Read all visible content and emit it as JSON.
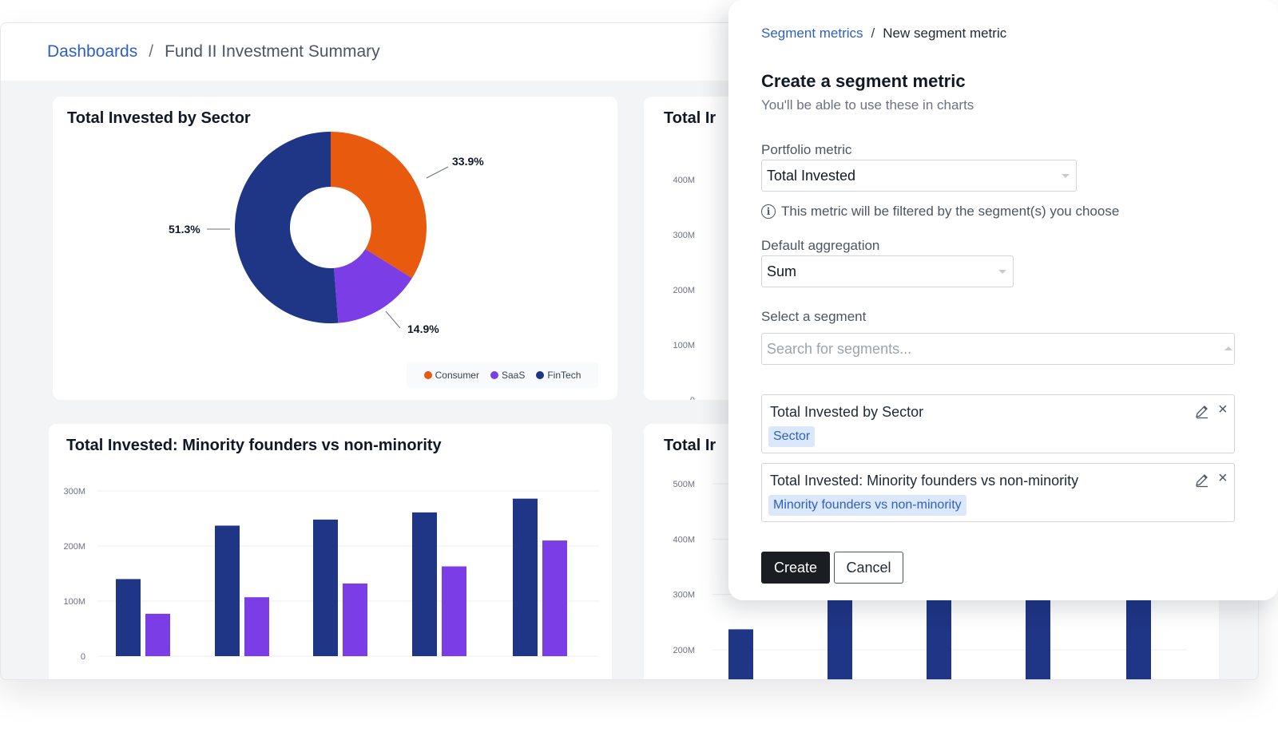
{
  "breadcrumb": {
    "root": "Dashboards",
    "separator": "/",
    "current": "Fund II Investment Summary"
  },
  "colors": {
    "consumer": "#e85a0e",
    "saas": "#7b3ee6",
    "fintech": "#1f3585",
    "accent": "#2f5fbf"
  },
  "charts": {
    "sector": {
      "title": "Total Invested by Sector",
      "labels": {
        "consumer": "33.9%",
        "saas": "14.9%",
        "fintech": "51.3%"
      },
      "legend": {
        "consumer": "Consumer",
        "saas": "SaaS",
        "fintech": "FinTech"
      }
    },
    "minority": {
      "title": "Total Invested: Minority founders vs non-minority",
      "ticks": [
        "0",
        "100M",
        "200M",
        "300M"
      ]
    },
    "right_top": {
      "title": "Total Ir",
      "ticks": [
        "0",
        "100M",
        "200M",
        "300M",
        "400M"
      ]
    },
    "right_bottom": {
      "title": "Total Ir",
      "ticks": [
        "200M",
        "300M",
        "400M",
        "500M"
      ]
    }
  },
  "chart_data": [
    {
      "type": "pie",
      "title": "Total Invested by Sector",
      "categories": [
        "Consumer",
        "SaaS",
        "FinTech"
      ],
      "values": [
        33.9,
        14.9,
        51.3
      ],
      "legend_position": "bottom-right"
    },
    {
      "type": "bar",
      "title": "Total Invested: Minority founders vs non-minority",
      "ylim": [
        0,
        300000000
      ],
      "series": [
        {
          "values": [
            140000000,
            237000000,
            248000000,
            261000000,
            286000000
          ]
        },
        {
          "values": [
            77000000,
            107000000,
            132000000,
            163000000,
            210000000
          ]
        }
      ]
    },
    {
      "type": "bar",
      "title": "Total Ir",
      "ylim": [
        0,
        400000000
      ]
    },
    {
      "type": "bar",
      "title": "Total Ir",
      "ylim": [
        200000000,
        500000000
      ],
      "series": [
        {
          "values": [
            237000000,
            332000000,
            340000000,
            340000000,
            340000000
          ]
        }
      ]
    }
  ],
  "modal": {
    "breadcrumb": {
      "root": "Segment metrics",
      "separator": "/",
      "current": "New segment metric"
    },
    "title": "Create a segment metric",
    "subtitle": "You'll be able to use these in charts",
    "portfolio_metric": {
      "label": "Portfolio metric",
      "value": "Total Invested"
    },
    "hint": "This metric will be filtered by the segment(s) you choose",
    "aggregation": {
      "label": "Default aggregation",
      "value": "Sum"
    },
    "segment": {
      "label": "Select a segment",
      "placeholder": "Search for segments..."
    },
    "selected": [
      {
        "title": "Total Invested by Sector",
        "tag": "Sector"
      },
      {
        "title": "Total Invested: Minority founders vs non-minority",
        "tag": "Minority founders vs non-minority"
      }
    ],
    "create_label": "Create",
    "cancel_label": "Cancel"
  }
}
